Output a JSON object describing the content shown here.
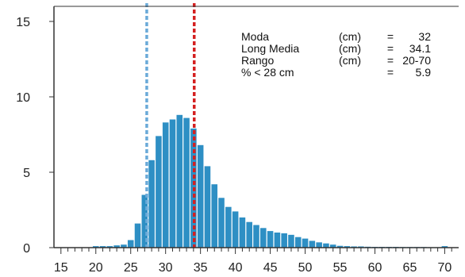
{
  "chart_data": {
    "type": "bar",
    "xlim": [
      14,
      72
    ],
    "ylim": [
      0,
      16
    ],
    "x_ticks": [
      15,
      20,
      25,
      30,
      35,
      40,
      45,
      50,
      55,
      60,
      65,
      70
    ],
    "y_ticks": [
      0,
      5,
      10,
      15
    ],
    "grid": false,
    "bar_color": "#2e8fc4",
    "x": [
      20,
      21,
      22,
      23,
      24,
      25,
      26,
      27,
      28,
      29,
      30,
      31,
      32,
      33,
      34,
      35,
      36,
      37,
      38,
      39,
      40,
      41,
      42,
      43,
      44,
      45,
      46,
      47,
      48,
      49,
      50,
      51,
      52,
      53,
      54,
      55,
      56,
      57,
      58,
      59,
      60,
      61,
      62,
      63,
      64,
      65,
      66,
      67,
      68,
      69,
      70
    ],
    "values": [
      0.1,
      0.1,
      0.1,
      0.15,
      0.2,
      0.5,
      1.6,
      3.5,
      5.8,
      7.4,
      8.3,
      8.5,
      8.8,
      8.6,
      7.9,
      6.8,
      5.4,
      4.2,
      3.3,
      2.7,
      2.4,
      2.0,
      1.7,
      1.5,
      1.3,
      1.1,
      1.0,
      0.95,
      0.85,
      0.7,
      0.6,
      0.45,
      0.35,
      0.28,
      0.2,
      0.12,
      0.1,
      0.08,
      0.08,
      0.06,
      0.05,
      0.05,
      0.05,
      0.05,
      0.04,
      0.04,
      0.04,
      0.04,
      0.03,
      0.03,
      0.1
    ],
    "reference_lines": [
      {
        "x": 27.3,
        "color": "#6aaad8",
        "style": "dashed"
      },
      {
        "x": 34.1,
        "color": "#d42020",
        "style": "dashed"
      }
    ],
    "annotations": [
      {
        "label": "Moda",
        "unit": "(cm)",
        "eq": "=",
        "value": "32"
      },
      {
        "label": "Long Media",
        "unit": "(cm)",
        "eq": "=",
        "value": "34.1"
      },
      {
        "label": "Rango",
        "unit": "(cm)",
        "eq": "=",
        "value": "20-70"
      },
      {
        "label": "% < 28 cm",
        "unit": "",
        "eq": "=",
        "value": "5.9"
      }
    ]
  }
}
